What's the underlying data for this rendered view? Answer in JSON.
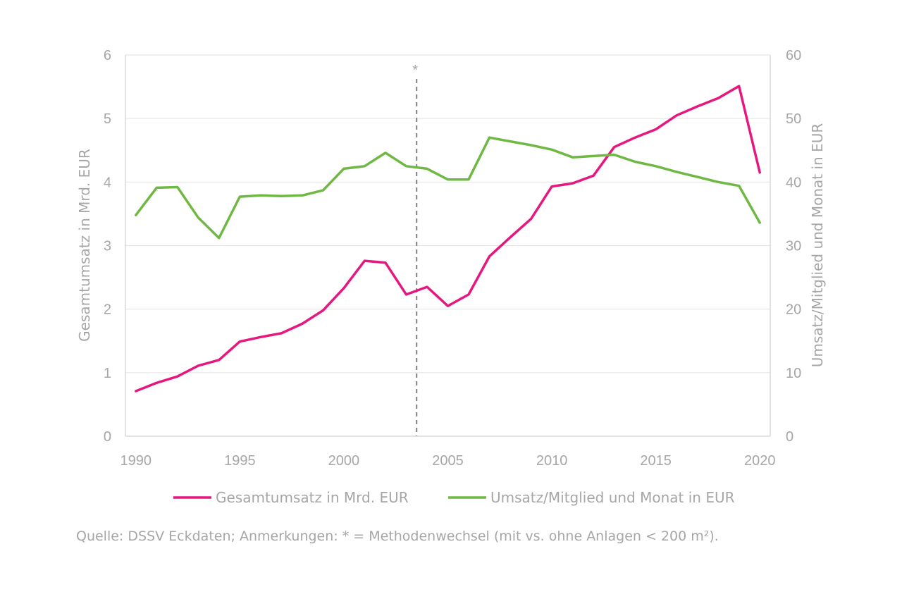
{
  "chart_data": {
    "type": "line",
    "x": [
      1990,
      1991,
      1992,
      1993,
      1994,
      1995,
      1996,
      1997,
      1998,
      1999,
      2000,
      2001,
      2002,
      2003,
      2004,
      2005,
      2006,
      2007,
      2008,
      2009,
      2010,
      2011,
      2012,
      2013,
      2014,
      2015,
      2016,
      2017,
      2018,
      2019,
      2020
    ],
    "x_ticks": [
      "1990",
      "1995",
      "2000",
      "2005",
      "2010",
      "2015",
      "2020"
    ],
    "xlim": [
      1989.5,
      2020.5
    ],
    "y_left": {
      "label": "Gesamtumsatz in Mrd. EUR",
      "ticks": [
        "0",
        "1",
        "2",
        "3",
        "4",
        "5",
        "6"
      ],
      "lim": [
        0,
        6
      ]
    },
    "y_right": {
      "label": "Umsatz/Mitglied und Monat in EUR",
      "ticks": [
        "0",
        "10",
        "20",
        "30",
        "40",
        "50",
        "60"
      ],
      "lim": [
        0,
        60
      ]
    },
    "series": [
      {
        "name": "Gesamtumsatz in Mrd. EUR",
        "axis": "left",
        "color": "#e6177f",
        "values": [
          0.71,
          0.84,
          0.94,
          1.11,
          1.2,
          1.49,
          1.56,
          1.62,
          1.77,
          1.98,
          2.33,
          2.76,
          2.73,
          2.23,
          2.35,
          2.05,
          2.23,
          2.83,
          3.13,
          3.42,
          3.93,
          3.98,
          4.1,
          4.55,
          4.7,
          4.83,
          5.05,
          5.19,
          5.32,
          5.51,
          4.15
        ]
      },
      {
        "name": "Umsatz/Mitglied und Monat in EUR",
        "axis": "right",
        "color": "#70b844",
        "values": [
          34.8,
          39.1,
          39.2,
          34.4,
          31.2,
          37.7,
          37.9,
          37.8,
          37.9,
          38.7,
          42.1,
          42.5,
          44.6,
          42.5,
          42.1,
          40.4,
          40.4,
          47.0,
          46.4,
          45.8,
          45.1,
          43.9,
          44.1,
          44.3,
          43.2,
          42.5,
          41.6,
          40.8,
          40.0,
          39.4,
          33.6
        ]
      }
    ],
    "annotation": {
      "text": "*",
      "x": 2003.5
    },
    "grid": true,
    "legend": "bottom"
  },
  "colors": {
    "axis_text": "#a6a6a6",
    "grid": "#e6e6e6",
    "axis_line": "#d9d9d9",
    "marker_line": "#808080"
  },
  "source_note": "Quelle: DSSV Eckdaten; Anmerkungen: * = Methodenwechsel (mit vs. ohne Anlagen < 200 m²)."
}
